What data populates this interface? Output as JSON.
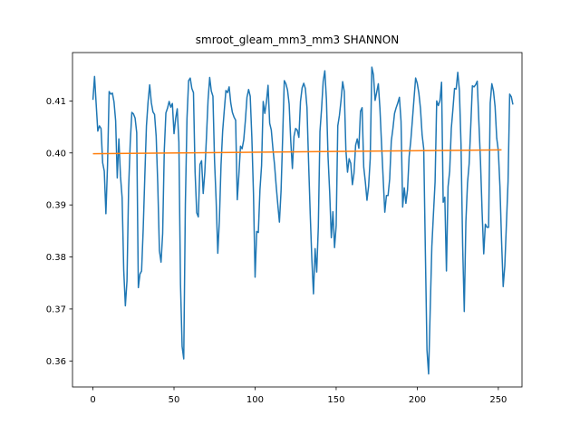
{
  "chart_data": {
    "type": "line",
    "title": "smroot_gleam_mm3_mm3 SHANNON",
    "xlabel": "",
    "ylabel": "",
    "xlim": [
      -12.6,
      264.6
    ],
    "ylim": [
      0.355,
      0.4193
    ],
    "xticks": [
      0,
      50,
      100,
      150,
      200,
      250
    ],
    "xtick_labels": [
      "0",
      "50",
      "100",
      "150",
      "200",
      "250"
    ],
    "yticks": [
      0.36,
      0.37,
      0.38,
      0.39,
      0.4,
      0.41
    ],
    "ytick_labels": [
      "0.36",
      "0.37",
      "0.38",
      "0.39",
      "0.40",
      "0.41"
    ],
    "grid": false,
    "series": [
      {
        "color": "#1f77b4",
        "x_start": 0,
        "values": [
          0.4102,
          0.4147,
          0.4094,
          0.4042,
          0.4052,
          0.4047,
          0.3981,
          0.3965,
          0.3883,
          0.3976,
          0.4118,
          0.4113,
          0.4115,
          0.4098,
          0.4062,
          0.3952,
          0.4027,
          0.3955,
          0.3914,
          0.3774,
          0.3706,
          0.3754,
          0.3931,
          0.4019,
          0.4078,
          0.4075,
          0.4067,
          0.4039,
          0.3741,
          0.3767,
          0.3773,
          0.3853,
          0.3955,
          0.4052,
          0.4098,
          0.4131,
          0.4097,
          0.4079,
          0.4074,
          0.4032,
          0.3938,
          0.3812,
          0.379,
          0.3845,
          0.4005,
          0.4077,
          0.4086,
          0.4099,
          0.4088,
          0.4095,
          0.4037,
          0.4066,
          0.4085,
          0.4021,
          0.3748,
          0.3628,
          0.3604,
          0.3901,
          0.4066,
          0.4139,
          0.4144,
          0.4124,
          0.4116,
          0.3963,
          0.3885,
          0.3877,
          0.3978,
          0.3985,
          0.3922,
          0.3963,
          0.403,
          0.4102,
          0.4145,
          0.4119,
          0.4109,
          0.3985,
          0.3907,
          0.3807,
          0.3872,
          0.3977,
          0.4042,
          0.4082,
          0.412,
          0.4116,
          0.4127,
          0.4096,
          0.4078,
          0.4069,
          0.4063,
          0.391,
          0.3958,
          0.4013,
          0.4008,
          0.4025,
          0.4062,
          0.4107,
          0.4122,
          0.4109,
          0.403,
          0.3922,
          0.3761,
          0.3849,
          0.3847,
          0.3929,
          0.3976,
          0.4099,
          0.4076,
          0.4098,
          0.413,
          0.4057,
          0.4044,
          0.4008,
          0.3977,
          0.3937,
          0.3901,
          0.3867,
          0.3926,
          0.403,
          0.4139,
          0.4133,
          0.4121,
          0.4094,
          0.4023,
          0.397,
          0.4032,
          0.4047,
          0.4044,
          0.403,
          0.4099,
          0.4125,
          0.4134,
          0.4124,
          0.4087,
          0.3981,
          0.3883,
          0.3796,
          0.3729,
          0.3816,
          0.3771,
          0.3858,
          0.4041,
          0.4085,
          0.4138,
          0.4158,
          0.4102,
          0.3992,
          0.3924,
          0.3837,
          0.3887,
          0.3818,
          0.386,
          0.4052,
          0.4072,
          0.4101,
          0.4137,
          0.4118,
          0.4005,
          0.3963,
          0.3989,
          0.398,
          0.3939,
          0.3961,
          0.4015,
          0.4027,
          0.4009,
          0.408,
          0.4087,
          0.3973,
          0.3944,
          0.3909,
          0.3936,
          0.3989,
          0.4165,
          0.415,
          0.4101,
          0.4117,
          0.4133,
          0.4085,
          0.4016,
          0.395,
          0.3886,
          0.3918,
          0.3918,
          0.395,
          0.4023,
          0.4047,
          0.4076,
          0.4087,
          0.4096,
          0.4107,
          0.4061,
          0.3896,
          0.3933,
          0.3903,
          0.3929,
          0.3993,
          0.4023,
          0.4063,
          0.4104,
          0.4144,
          0.4134,
          0.4115,
          0.4085,
          0.4035,
          0.4008,
          0.3811,
          0.3621,
          0.3575,
          0.3699,
          0.382,
          0.3883,
          0.3944,
          0.41,
          0.4091,
          0.4101,
          0.4136,
          0.3905,
          0.3915,
          0.3773,
          0.3935,
          0.3965,
          0.4047,
          0.4084,
          0.4124,
          0.4123,
          0.4155,
          0.412,
          0.4016,
          0.3822,
          0.3695,
          0.3868,
          0.3942,
          0.3979,
          0.4052,
          0.4129,
          0.4127,
          0.4131,
          0.4138,
          0.406,
          0.3984,
          0.3887,
          0.3806,
          0.3863,
          0.3857,
          0.3857,
          0.4096,
          0.4133,
          0.4119,
          0.4089,
          0.4029,
          0.4004,
          0.3935,
          0.3831,
          0.3743,
          0.3783,
          0.3864,
          0.3945,
          0.4113,
          0.4108,
          0.4093
        ]
      },
      {
        "color": "#ff7f0e",
        "x": [
          0,
          252
        ],
        "values": [
          0.39985,
          0.40058
        ]
      }
    ]
  }
}
